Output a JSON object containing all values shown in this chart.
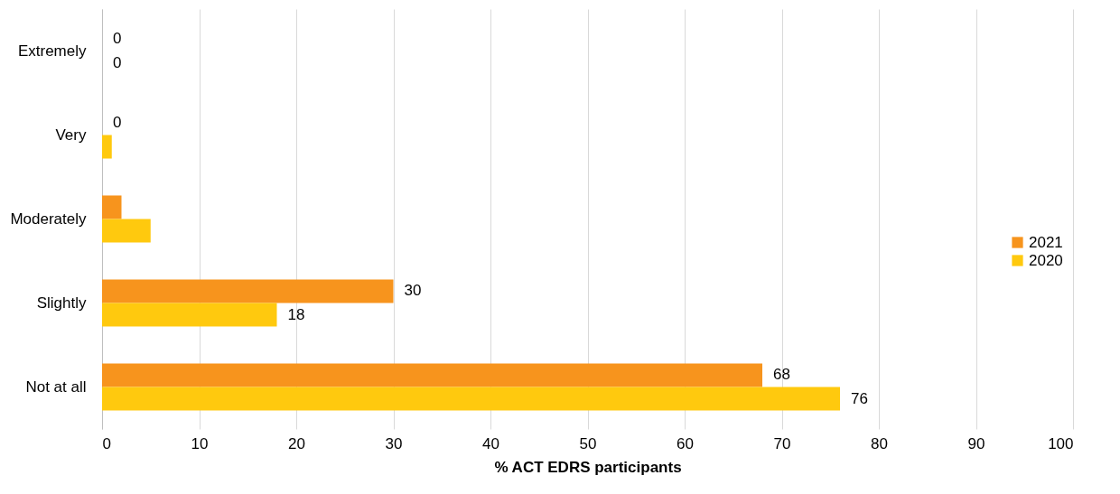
{
  "chart_data": {
    "type": "bar",
    "orientation": "horizontal",
    "xlabel": "% ACT EDRS participants",
    "categories": [
      "Extremely",
      "Very",
      "Moderately",
      "Slightly",
      "Not at all"
    ],
    "series": [
      {
        "name": "2021",
        "color": "#f7941d",
        "values": [
          0,
          0,
          2,
          30,
          68
        ],
        "value_labels": [
          "0",
          "0",
          null,
          "30",
          "68"
        ]
      },
      {
        "name": "2020",
        "color": "#ffc90e",
        "values": [
          0,
          1,
          5,
          18,
          76
        ],
        "value_labels": [
          "0",
          null,
          null,
          "18",
          "76"
        ]
      }
    ],
    "xlim": [
      0,
      100
    ],
    "xticks": [
      0,
      10,
      20,
      30,
      40,
      50,
      60,
      70,
      80,
      90,
      100
    ],
    "grid": "x",
    "legend": "right"
  }
}
